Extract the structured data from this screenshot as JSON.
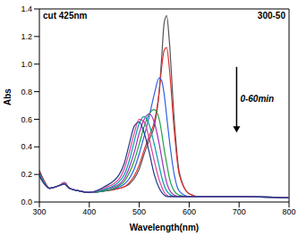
{
  "chart_data": {
    "type": "line",
    "x_label": "Wavelength(nm)",
    "y_label": "Abs",
    "annotations": [
      "cut 425nm",
      "300-50",
      "0-60min"
    ],
    "xlim": [
      300,
      800
    ],
    "xticks": [
      300,
      400,
      500,
      600,
      700,
      800
    ],
    "ylim": [
      0,
      1.4
    ],
    "yticks": [
      {
        "value": 0,
        "label": "0.0"
      },
      0.2,
      0.4,
      0.6,
      0.8,
      {
        "value": 1,
        "label": "1.0"
      },
      1.2,
      1.4
    ],
    "x": [
      300,
      310,
      320,
      340,
      350,
      360,
      380,
      400,
      430,
      460,
      470,
      480,
      490,
      500,
      510,
      520,
      530,
      540,
      545,
      550,
      555,
      560,
      570,
      580,
      600,
      620,
      650,
      700,
      800
    ],
    "series": [
      {
        "color": "#555555",
        "values": [
          0.23,
          0.15,
          0.1,
          0.12,
          0.13,
          0.1,
          0.08,
          0.07,
          0.08,
          0.1,
          0.11,
          0.13,
          0.17,
          0.24,
          0.35,
          0.45,
          0.55,
          0.8,
          1.05,
          1.3,
          1.35,
          1.18,
          0.6,
          0.22,
          0.06,
          0.04,
          0.04,
          0.04,
          0.03
        ]
      },
      {
        "color": "#e03030",
        "values": [
          0.22,
          0.15,
          0.1,
          0.12,
          0.14,
          0.1,
          0.08,
          0.07,
          0.08,
          0.1,
          0.11,
          0.14,
          0.19,
          0.27,
          0.38,
          0.48,
          0.58,
          0.8,
          0.98,
          1.1,
          1.12,
          0.98,
          0.52,
          0.2,
          0.06,
          0.04,
          0.04,
          0.04,
          0.03
        ]
      },
      {
        "color": "#3060e0",
        "values": [
          0.21,
          0.14,
          0.1,
          0.12,
          0.14,
          0.1,
          0.08,
          0.07,
          0.08,
          0.11,
          0.13,
          0.17,
          0.24,
          0.35,
          0.48,
          0.62,
          0.78,
          0.9,
          0.88,
          0.78,
          0.62,
          0.46,
          0.2,
          0.08,
          0.04,
          0.04,
          0.04,
          0.04,
          0.03
        ]
      },
      {
        "color": "#20a040",
        "values": [
          0.2,
          0.14,
          0.1,
          0.12,
          0.14,
          0.1,
          0.08,
          0.07,
          0.08,
          0.12,
          0.15,
          0.21,
          0.3,
          0.42,
          0.55,
          0.64,
          0.67,
          0.6,
          0.5,
          0.38,
          0.28,
          0.18,
          0.08,
          0.05,
          0.04,
          0.04,
          0.04,
          0.04,
          0.03
        ]
      },
      {
        "color": "#a030c0",
        "values": [
          0.2,
          0.14,
          0.1,
          0.12,
          0.14,
          0.1,
          0.08,
          0.07,
          0.09,
          0.13,
          0.17,
          0.25,
          0.36,
          0.5,
          0.6,
          0.64,
          0.58,
          0.42,
          0.32,
          0.22,
          0.14,
          0.09,
          0.05,
          0.04,
          0.04,
          0.04,
          0.04,
          0.04,
          0.03
        ]
      },
      {
        "color": "#00a0a0",
        "values": [
          0.2,
          0.14,
          0.1,
          0.12,
          0.14,
          0.1,
          0.08,
          0.07,
          0.09,
          0.15,
          0.2,
          0.3,
          0.44,
          0.57,
          0.62,
          0.56,
          0.42,
          0.26,
          0.18,
          0.12,
          0.08,
          0.06,
          0.04,
          0.04,
          0.04,
          0.04,
          0.04,
          0.04,
          0.03
        ]
      },
      {
        "color": "#e040a0",
        "values": [
          0.19,
          0.13,
          0.1,
          0.12,
          0.14,
          0.1,
          0.08,
          0.07,
          0.1,
          0.17,
          0.24,
          0.36,
          0.5,
          0.6,
          0.58,
          0.46,
          0.3,
          0.16,
          0.11,
          0.07,
          0.05,
          0.04,
          0.04,
          0.04,
          0.04,
          0.04,
          0.04,
          0.04,
          0.03
        ]
      },
      {
        "color": "#1f3a8a",
        "values": [
          0.19,
          0.13,
          0.1,
          0.12,
          0.13,
          0.1,
          0.08,
          0.07,
          0.11,
          0.2,
          0.28,
          0.42,
          0.55,
          0.58,
          0.5,
          0.36,
          0.2,
          0.1,
          0.07,
          0.05,
          0.04,
          0.04,
          0.04,
          0.04,
          0.04,
          0.04,
          0.04,
          0.04,
          0.03
        ]
      }
    ]
  }
}
